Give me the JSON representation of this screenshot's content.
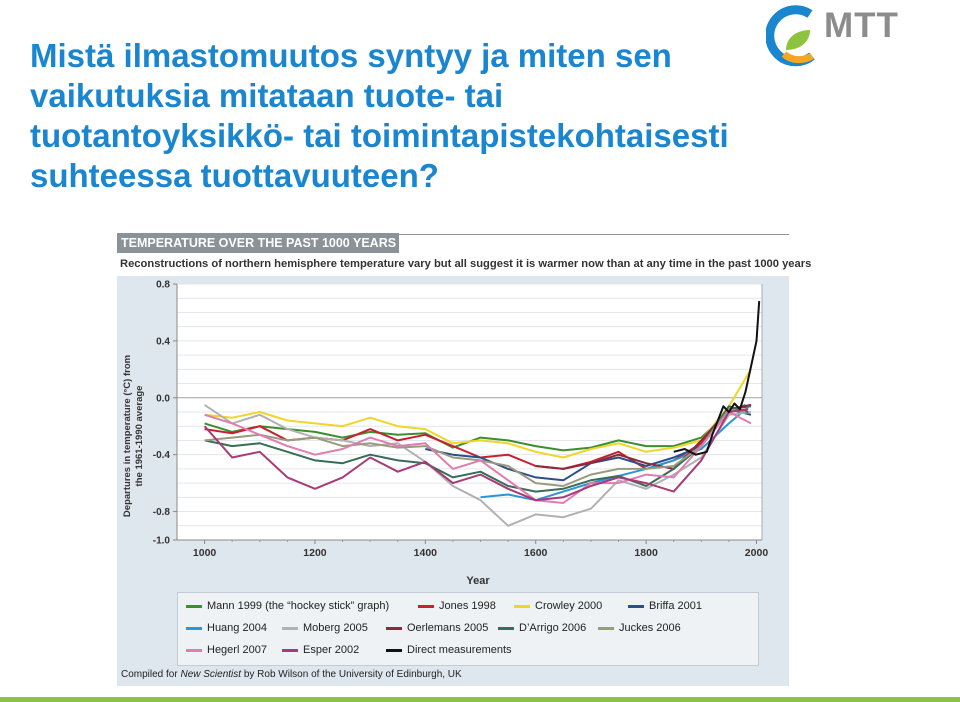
{
  "slide": {
    "title_lines": [
      "Mistä ilmastomuutos syntyy ja miten sen",
      "vaikutuksia mitataan tuote- tai",
      "tuotantoyksikkö- tai toimintapistekohtaisesti",
      "suhteessa tuottavuuteen?"
    ],
    "logo_text": "MTT",
    "colors": {
      "title": "#1a86d0",
      "accent_bar": "#8dc43f",
      "logo_blue": "#1a86d0",
      "logo_green": "#8dc43f",
      "logo_orange": "#f5a623"
    }
  },
  "chart_data": {
    "type": "line",
    "title": "TEMPERATURE OVER THE PAST 1000 YEARS",
    "subtitle": "Reconstructions of northern hemisphere temperature vary but all suggest it is warmer now than at any time in the past 1000 years",
    "xlabel": "Year",
    "ylabel_lines": [
      "Departures in temperature (°C) from",
      "the 1961-1990 average"
    ],
    "xlim": [
      950,
      2010
    ],
    "ylim": [
      -1.0,
      0.8
    ],
    "xticks": [
      "1000",
      "1200",
      "1400",
      "1600",
      "1800",
      "2000"
    ],
    "yticks": [
      "0.8",
      "0.4",
      "0.0",
      "-0.4",
      "-0.8",
      "-1.0"
    ],
    "grid": true,
    "legend_position": "bottom",
    "credit": {
      "prefix": "Compiled for ",
      "publication": "New Scientist",
      "suffix": " by Rob Wilson of the University of Edinburgh, UK"
    },
    "series": [
      {
        "name": "Mann 1999 (the “hockey stick” graph)",
        "color": "#3b8f2e",
        "x": [
          1000,
          1050,
          1100,
          1150,
          1200,
          1250,
          1300,
          1350,
          1400,
          1450,
          1500,
          1550,
          1600,
          1650,
          1700,
          1750,
          1800,
          1850,
          1900,
          1950,
          1980
        ],
        "y": [
          -0.18,
          -0.24,
          -0.2,
          -0.22,
          -0.24,
          -0.28,
          -0.24,
          -0.26,
          -0.25,
          -0.35,
          -0.28,
          -0.3,
          -0.34,
          -0.37,
          -0.35,
          -0.3,
          -0.34,
          -0.34,
          -0.28,
          -0.1,
          -0.05
        ]
      },
      {
        "name": "Jones 1998",
        "color": "#c8202f",
        "x": [
          1000,
          1050,
          1100,
          1150,
          1200,
          1250,
          1300,
          1350,
          1400,
          1450,
          1500,
          1550,
          1600,
          1650,
          1700,
          1750,
          1800,
          1850,
          1900,
          1950,
          1990
        ],
        "y": [
          -0.22,
          -0.25,
          -0.2,
          -0.3,
          -0.28,
          -0.3,
          -0.22,
          -0.3,
          -0.26,
          -0.34,
          -0.42,
          -0.4,
          -0.48,
          -0.5,
          -0.45,
          -0.38,
          -0.5,
          -0.44,
          -0.32,
          -0.08,
          -0.06
        ]
      },
      {
        "name": "Crowley 2000",
        "color": "#f0d52a",
        "x": [
          1000,
          1050,
          1100,
          1150,
          1200,
          1250,
          1300,
          1350,
          1400,
          1450,
          1500,
          1550,
          1600,
          1650,
          1700,
          1750,
          1800,
          1850,
          1900,
          1950,
          1990
        ],
        "y": [
          -0.12,
          -0.14,
          -0.1,
          -0.16,
          -0.18,
          -0.2,
          -0.14,
          -0.2,
          -0.22,
          -0.32,
          -0.3,
          -0.32,
          -0.38,
          -0.42,
          -0.36,
          -0.32,
          -0.38,
          -0.35,
          -0.3,
          -0.06,
          0.2
        ]
      },
      {
        "name": "Briffa 2001",
        "color": "#2a4f8a",
        "x": [
          1400,
          1450,
          1500,
          1550,
          1600,
          1650,
          1700,
          1750,
          1800,
          1850,
          1900,
          1950,
          1990
        ],
        "y": [
          -0.36,
          -0.4,
          -0.42,
          -0.5,
          -0.56,
          -0.58,
          -0.46,
          -0.42,
          -0.48,
          -0.42,
          -0.34,
          -0.08,
          -0.12
        ]
      },
      {
        "name": "Huang 2004",
        "color": "#2a96d4",
        "x": [
          1500,
          1550,
          1600,
          1650,
          1700,
          1750,
          1800,
          1850,
          1900,
          1950,
          1990
        ],
        "y": [
          -0.7,
          -0.68,
          -0.72,
          -0.66,
          -0.6,
          -0.55,
          -0.5,
          -0.44,
          -0.36,
          -0.18,
          -0.05
        ]
      },
      {
        "name": "Moberg 2005",
        "color": "#b1b1b1",
        "x": [
          1000,
          1050,
          1100,
          1150,
          1200,
          1250,
          1300,
          1350,
          1400,
          1450,
          1500,
          1550,
          1600,
          1650,
          1700,
          1750,
          1800,
          1850,
          1900,
          1950,
          1990
        ],
        "y": [
          -0.05,
          -0.18,
          -0.12,
          -0.22,
          -0.28,
          -0.3,
          -0.34,
          -0.32,
          -0.45,
          -0.62,
          -0.72,
          -0.9,
          -0.82,
          -0.84,
          -0.78,
          -0.58,
          -0.64,
          -0.54,
          -0.42,
          -0.12,
          -0.1
        ]
      },
      {
        "name": "Oerlemans 2005",
        "color": "#8a2a3e",
        "x": [
          1600,
          1650,
          1700,
          1750,
          1800,
          1850,
          1900,
          1950,
          1990
        ],
        "y": [
          -0.48,
          -0.5,
          -0.46,
          -0.4,
          -0.46,
          -0.5,
          -0.3,
          -0.08,
          -0.05
        ]
      },
      {
        "name": "D’Arrigo 2006",
        "color": "#3a6d55",
        "x": [
          1000,
          1050,
          1100,
          1150,
          1200,
          1250,
          1300,
          1350,
          1400,
          1450,
          1500,
          1550,
          1600,
          1650,
          1700,
          1750,
          1800,
          1850,
          1900,
          1950,
          1985
        ],
        "y": [
          -0.3,
          -0.34,
          -0.32,
          -0.38,
          -0.44,
          -0.46,
          -0.4,
          -0.44,
          -0.46,
          -0.56,
          -0.52,
          -0.62,
          -0.66,
          -0.64,
          -0.58,
          -0.55,
          -0.62,
          -0.5,
          -0.34,
          -0.06,
          -0.1
        ]
      },
      {
        "name": "Juckes 2006",
        "color": "#9a9a7e",
        "x": [
          1000,
          1050,
          1100,
          1150,
          1200,
          1250,
          1300,
          1350,
          1400,
          1450,
          1500,
          1550,
          1600,
          1650,
          1700,
          1750,
          1800,
          1850,
          1900,
          1950,
          1980
        ],
        "y": [
          -0.3,
          -0.28,
          -0.26,
          -0.3,
          -0.28,
          -0.34,
          -0.32,
          -0.35,
          -0.34,
          -0.42,
          -0.44,
          -0.48,
          -0.6,
          -0.62,
          -0.54,
          -0.5,
          -0.5,
          -0.48,
          -0.34,
          -0.08,
          -0.1
        ]
      },
      {
        "name": "Hegerl 2007",
        "color": "#e07db0",
        "x": [
          1000,
          1050,
          1100,
          1150,
          1200,
          1250,
          1300,
          1350,
          1400,
          1450,
          1500,
          1550,
          1600,
          1650,
          1700,
          1750,
          1800,
          1850,
          1900,
          1950,
          1990
        ],
        "y": [
          -0.12,
          -0.18,
          -0.26,
          -0.34,
          -0.4,
          -0.36,
          -0.28,
          -0.34,
          -0.32,
          -0.5,
          -0.44,
          -0.58,
          -0.72,
          -0.74,
          -0.6,
          -0.6,
          -0.54,
          -0.56,
          -0.34,
          -0.1,
          -0.18
        ]
      },
      {
        "name": "Esper 2002",
        "color": "#a83a78",
        "x": [
          1000,
          1050,
          1100,
          1150,
          1200,
          1250,
          1300,
          1350,
          1400,
          1450,
          1500,
          1550,
          1600,
          1650,
          1700,
          1750,
          1800,
          1850,
          1900,
          1950,
          1985
        ],
        "y": [
          -0.2,
          -0.42,
          -0.38,
          -0.56,
          -0.64,
          -0.56,
          -0.42,
          -0.52,
          -0.45,
          -0.6,
          -0.54,
          -0.64,
          -0.72,
          -0.7,
          -0.62,
          -0.56,
          -0.6,
          -0.66,
          -0.44,
          -0.1,
          -0.08
        ]
      },
      {
        "name": "Direct measurements",
        "color": "#111111",
        "x": [
          1850,
          1870,
          1890,
          1910,
          1920,
          1940,
          1950,
          1960,
          1970,
          1980,
          1990,
          2000,
          2005
        ],
        "y": [
          -0.38,
          -0.36,
          -0.4,
          -0.38,
          -0.26,
          -0.06,
          -0.1,
          -0.04,
          -0.08,
          0.04,
          0.22,
          0.4,
          0.68
        ]
      }
    ]
  }
}
